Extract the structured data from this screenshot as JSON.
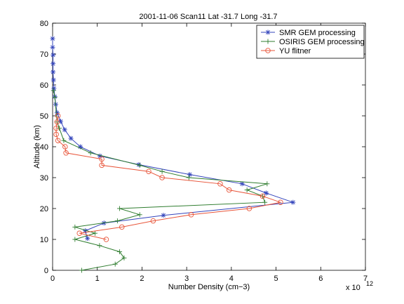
{
  "chart_data": {
    "type": "line",
    "title": "2001-11-06 Scan11 Lat -31.7 Long -31.7",
    "xlabel": "Number Density (cm−3)",
    "ylabel": "Altitude (km)",
    "x_multiplier_label": "x 10",
    "x_multiplier_exponent": "12",
    "xlim": [
      0,
      7
    ],
    "ylim": [
      0,
      80
    ],
    "xticks": [
      "0",
      "1",
      "2",
      "3",
      "4",
      "5",
      "6",
      "7"
    ],
    "yticks": [
      "0",
      "10",
      "20",
      "30",
      "40",
      "50",
      "60",
      "70",
      "80"
    ],
    "grid": false,
    "legend_position": "top-right",
    "series": [
      {
        "name": "SMR GEM processing",
        "color": "#3344bb",
        "marker": "asterisk",
        "points": [
          [
            0.0,
            75
          ],
          [
            0.0,
            72.2
          ],
          [
            0.01,
            69.7
          ],
          [
            0.01,
            66.9
          ],
          [
            0.01,
            64.2
          ],
          [
            0.02,
            61.6
          ],
          [
            0.03,
            58.9
          ],
          [
            0.05,
            56.2
          ],
          [
            0.07,
            53.7
          ],
          [
            0.1,
            51
          ],
          [
            0.18,
            48.2
          ],
          [
            0.27,
            45.5
          ],
          [
            0.41,
            42.7
          ],
          [
            0.62,
            40
          ],
          [
            1.06,
            37
          ],
          [
            1.93,
            34.2
          ],
          [
            3.07,
            31
          ],
          [
            4.24,
            28
          ],
          [
            4.78,
            25
          ],
          [
            5.38,
            22
          ],
          [
            2.48,
            17.8
          ],
          [
            1.15,
            15.3
          ],
          [
            0.73,
            12.8
          ],
          [
            0.78,
            10.3
          ]
        ]
      },
      {
        "name": "OSIRIS GEM processing",
        "color": "#2f7d2f",
        "marker": "plus",
        "points": [
          [
            0.02,
            58.2
          ],
          [
            0.05,
            56
          ],
          [
            0.1,
            48
          ],
          [
            0.15,
            46
          ],
          [
            0.25,
            42
          ],
          [
            0.85,
            38
          ],
          [
            1.95,
            34
          ],
          [
            2.45,
            32
          ],
          [
            3.05,
            30
          ],
          [
            4.8,
            28
          ],
          [
            4.35,
            26
          ],
          [
            4.7,
            24
          ],
          [
            4.75,
            22
          ],
          [
            1.5,
            20
          ],
          [
            1.95,
            18
          ],
          [
            1.45,
            16
          ],
          [
            0.5,
            14
          ],
          [
            0.95,
            12
          ],
          [
            0.5,
            10
          ],
          [
            1.05,
            8
          ],
          [
            1.5,
            6
          ],
          [
            1.6,
            4
          ],
          [
            1.4,
            2
          ],
          [
            0.65,
            0
          ]
        ]
      },
      {
        "name": "YU flitner",
        "color": "#e8553a",
        "marker": "circle",
        "points": [
          [
            0.12,
            50
          ],
          [
            0.1,
            48
          ],
          [
            0.08,
            46
          ],
          [
            0.08,
            44
          ],
          [
            0.12,
            42
          ],
          [
            0.28,
            40
          ],
          [
            0.3,
            38
          ],
          [
            1.1,
            36
          ],
          [
            1.1,
            34
          ],
          [
            2.15,
            32
          ],
          [
            2.45,
            30
          ],
          [
            3.75,
            28
          ],
          [
            3.95,
            26
          ],
          [
            4.7,
            24
          ],
          [
            5.1,
            22
          ],
          [
            4.4,
            20
          ],
          [
            3.1,
            18
          ],
          [
            2.25,
            16
          ],
          [
            1.55,
            14
          ],
          [
            0.6,
            12
          ],
          [
            1.2,
            10
          ]
        ]
      }
    ]
  }
}
